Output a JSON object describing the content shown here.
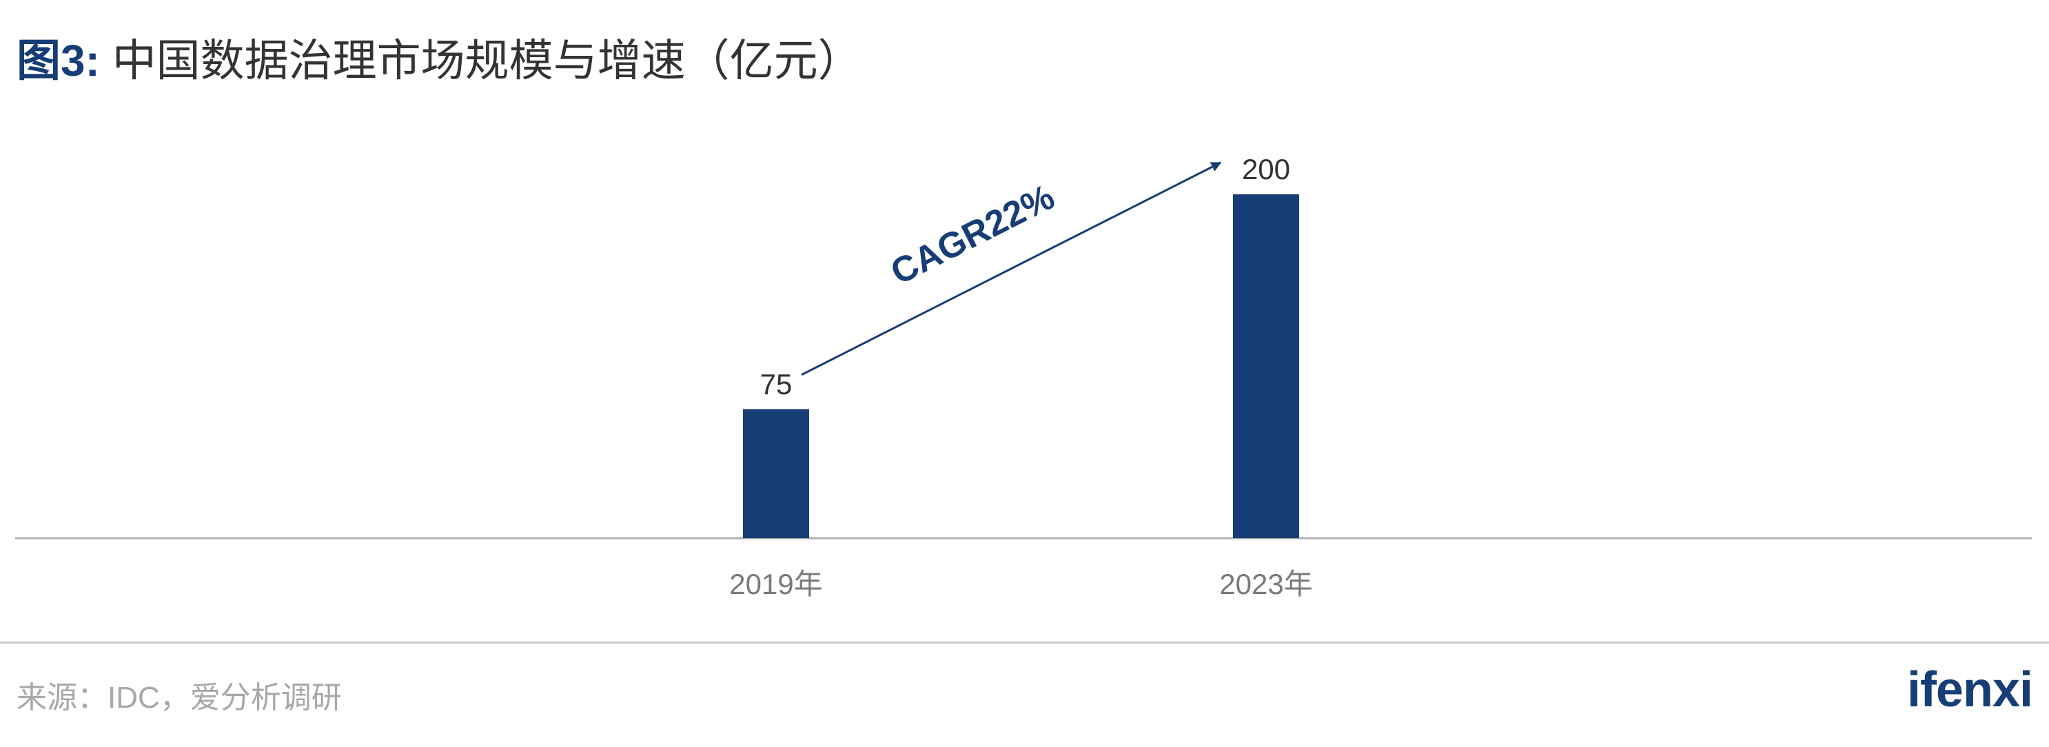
{
  "title": {
    "figure_label": "图3:",
    "text": "中国数据治理市场规模与增速（亿元）"
  },
  "chart_data": {
    "type": "bar",
    "categories": [
      "2019年",
      "2023年"
    ],
    "values": [
      75,
      200
    ],
    "data_labels": [
      "75",
      "200"
    ],
    "title": "中国数据治理市场规模与增速（亿元）",
    "xlabel": "",
    "ylabel": "",
    "ylim": [
      0,
      200
    ],
    "grid": false,
    "bar_color": "#163d75",
    "annotations": [
      {
        "type": "arrow",
        "from_category": "2019年",
        "to_category": "2023年",
        "label": "CAGR22%"
      }
    ]
  },
  "source": "来源：IDC，爱分析调研",
  "logo": "ifenxi",
  "colors": {
    "accent": "#163d75",
    "axis": "#b0b0b0",
    "tick_text": "#7a7a7a",
    "source_text": "#a8a8a8"
  }
}
